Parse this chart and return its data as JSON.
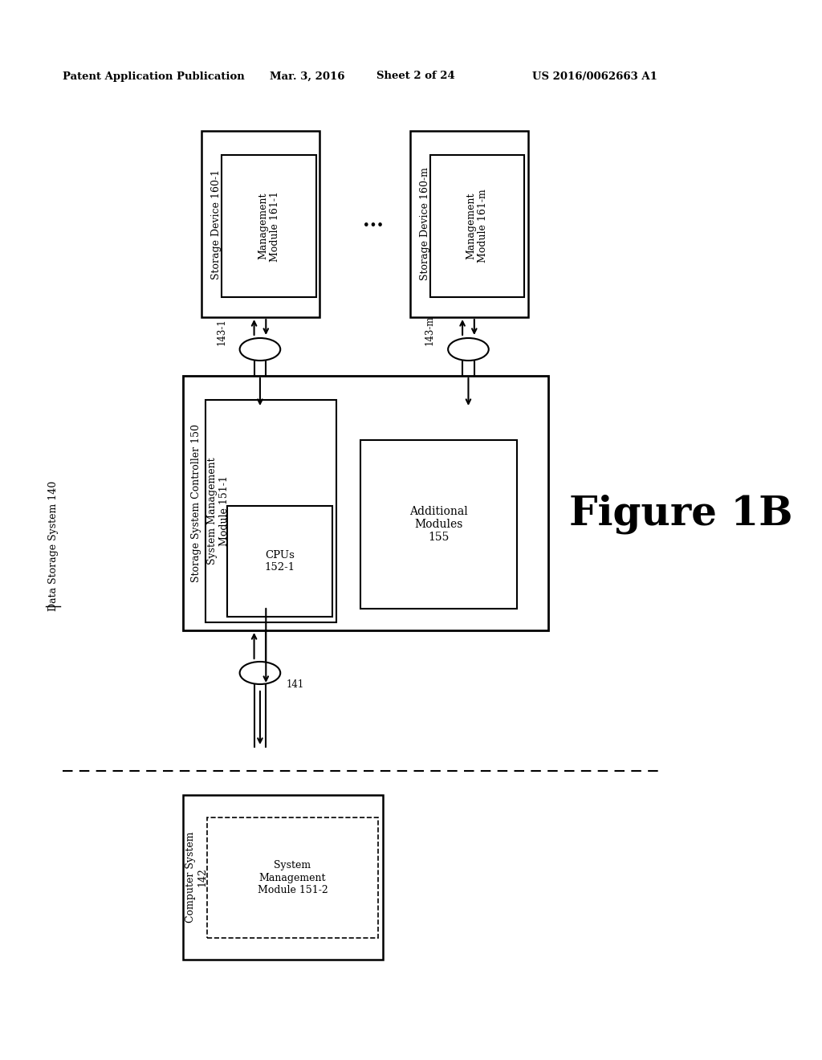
{
  "bg_color": "#ffffff",
  "header_text": "Patent Application Publication",
  "header_date": "Mar. 3, 2016",
  "header_sheet": "Sheet 2 of 24",
  "header_patent": "US 2016/0062663 A1",
  "figure_label": "Figure 1B",
  "system_label": "Data Storage System 140",
  "storage_controller_label": "Storage System Controller 150",
  "sys_mgmt_label": "System Management\nModule 151-1",
  "cpu_label": "CPUs\n152-1",
  "additional_label": "Additional\nModules\n155",
  "storage_device1_label": "Storage Device 160-1",
  "mgmt_module1_label": "Management\nModule 161-1",
  "storage_devicem_label": "Storage Device 160-m",
  "mgmt_modulem_label": "Management\nModule 161-m",
  "ellipsis_label": "...",
  "interface1_label": "143-1",
  "interfacem_label": "143-m",
  "interface_bottom_label": "141",
  "computer_system_label": "Computer System\n142",
  "sys_mgmt2_label": "System\nManagement\nModule 151-2"
}
